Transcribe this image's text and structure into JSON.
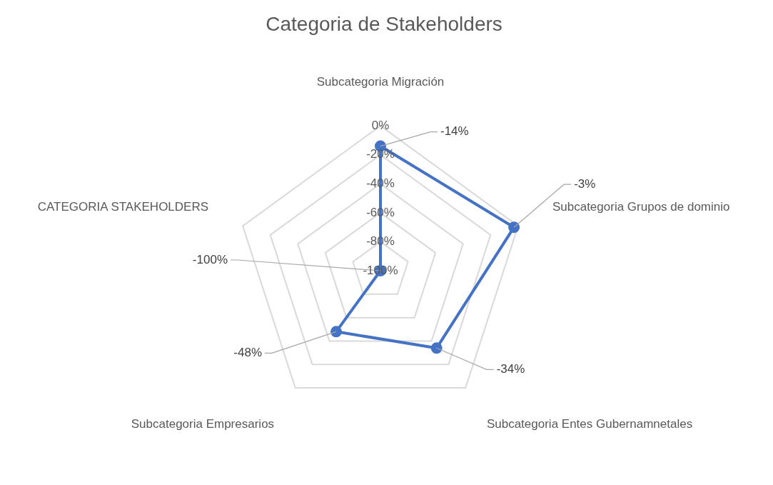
{
  "chart_data": {
    "type": "radar",
    "title": "Categoria de Stakeholders",
    "categories": [
      "Subcategoria Migración",
      "Subcategoria Grupos de dominio",
      "Subcategoria Entes Gubernamnetales",
      "Subcategoria Empresarios",
      "CATEGORIA STAKEHOLDERS"
    ],
    "series": [
      {
        "color": "#4472c4",
        "values": [
          -14,
          -3,
          -34,
          -48,
          -100
        ],
        "value_labels": [
          "-14%",
          "-3%",
          "-34%",
          "-48%",
          "-100%"
        ]
      }
    ],
    "ylim": [
      -100,
      0
    ],
    "yticks": [
      {
        "value": -100,
        "label": "-100%"
      },
      {
        "value": -80,
        "label": "-80%"
      },
      {
        "value": -60,
        "label": "-60%"
      },
      {
        "value": -40,
        "label": "-40%"
      },
      {
        "value": -20,
        "label": "-20%"
      },
      {
        "value": 0,
        "label": "0%"
      }
    ],
    "grid": true,
    "legend": false,
    "marker": "circle",
    "line_style": "solid"
  }
}
